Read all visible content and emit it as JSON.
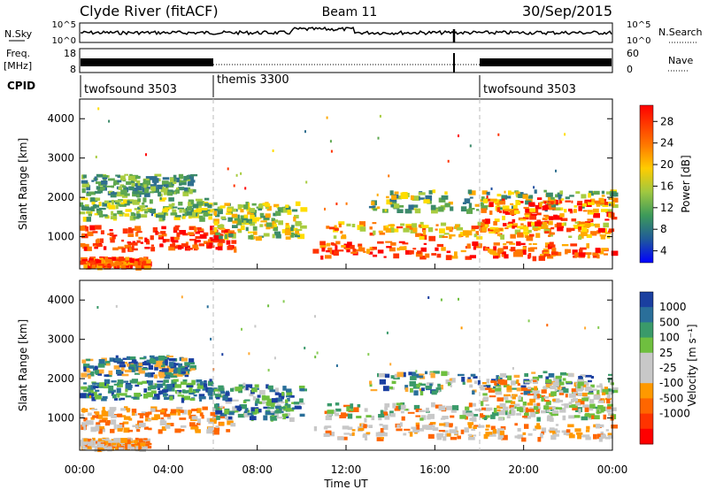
{
  "header": {
    "station": "Clyde River (fitACF)",
    "beam": "Beam 11",
    "date": "30/Sep/2015"
  },
  "chart_data": [
    {
      "type": "line",
      "panel": "noise",
      "left_label": "N.Sky",
      "right_label": "N.Search",
      "left_ticks": [
        "10^5",
        "10^0"
      ],
      "right_ticks": [
        "10^5",
        "10^0"
      ],
      "note": ""
    },
    {
      "type": "line",
      "panel": "frequency",
      "left_label_top": "Freq.",
      "left_label_bottom": "[MHz]",
      "right_label": "Nave",
      "left_ticks": [
        "18",
        "8"
      ],
      "right_ticks": [
        "60",
        "0"
      ]
    },
    {
      "type": "table",
      "panel": "cpid",
      "label": "CPID",
      "segments": [
        {
          "name": "twofsound 3503",
          "start_hour": 0
        },
        {
          "name": "themis 3300",
          "start_hour": 6
        },
        {
          "name": "twofsound 3503",
          "start_hour": 18
        }
      ]
    },
    {
      "type": "heatmap",
      "panel": "power",
      "ylabel": "Slant Range [km]",
      "ylim": [
        180,
        4500
      ],
      "yticks": [
        "1000",
        "2000",
        "3000",
        "4000"
      ],
      "colorbar_label": "Power [dB]",
      "colorbar_ticks": [
        "28",
        "24",
        "20",
        "16",
        "12",
        "8",
        "4"
      ],
      "colorbar_colors": [
        "#ff0000",
        "#ff3300",
        "#ff7700",
        "#ffaa00",
        "#ffdd00",
        "#c8d400",
        "#7fbf3f",
        "#3c9a5a",
        "#2f7f7f",
        "#1f4fa0",
        "#0000ff"
      ]
    },
    {
      "type": "heatmap",
      "panel": "velocity",
      "ylabel": "Slant Range [km]",
      "ylim": [
        180,
        4500
      ],
      "yticks": [
        "1000",
        "2000",
        "3000",
        "4000"
      ],
      "colorbar_label": "Velocity [m s⁻¹]",
      "colorbar_ticks": [
        "1000",
        "500",
        "100",
        "25",
        "-25",
        "-100",
        "-500",
        "-1000"
      ],
      "colorbar_colors": [
        "#1a3fa0",
        "#2a6f9a",
        "#3a9a6a",
        "#6fbf3f",
        "#c8c8c8",
        "#c8c8c8",
        "#ff9900",
        "#ff6600",
        "#ff3300",
        "#ff0000"
      ]
    }
  ],
  "xaxis": {
    "label": "Time UT",
    "ticks": [
      "00:00",
      "04:00",
      "08:00",
      "12:00",
      "16:00",
      "20:00",
      "00:00"
    ],
    "range_hours": [
      0,
      24
    ]
  }
}
